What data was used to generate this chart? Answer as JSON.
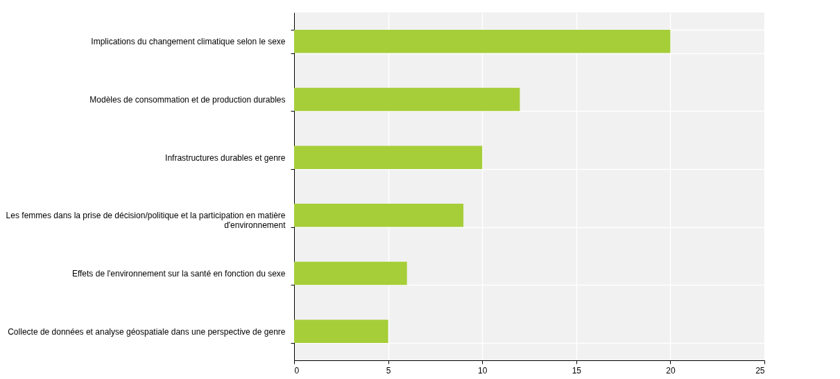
{
  "chart_data": {
    "type": "bar",
    "orientation": "horizontal",
    "categories": [
      "Implications du changement climatique selon le sexe",
      "Modèles de consommation et de production durables",
      "Infrastructures durables et genre",
      "Les femmes dans la prise de décision/politique et la participation en matière d'environnement",
      "Effets de l'environnement sur la santé en fonction du sexe",
      "Collecte de données et analyse géospatiale dans une perspective de genre"
    ],
    "values": [
      20,
      12,
      10,
      9,
      6,
      5
    ],
    "color": "#a6ce39",
    "xlim": [
      0,
      25
    ],
    "xticks": [
      0,
      5,
      10,
      15,
      20,
      25
    ],
    "grid": true
  }
}
